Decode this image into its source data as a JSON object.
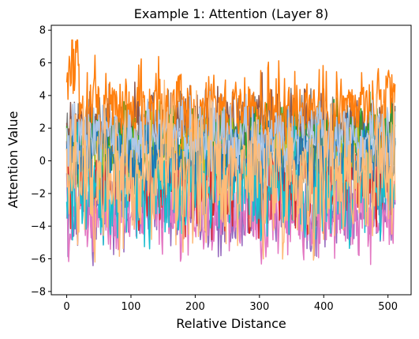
{
  "chart_data": {
    "type": "line",
    "title": "Example 1: Attention (Layer 8)",
    "xlabel": "Relative Distance",
    "ylabel": "Attention Value",
    "xlim": [
      -24,
      536
    ],
    "ylim": [
      -8.2,
      8.3
    ],
    "x_ticks": [
      0,
      100,
      200,
      300,
      400,
      500
    ],
    "y_ticks": [
      8,
      6,
      4,
      2,
      0,
      -2,
      -4,
      -6,
      -8
    ],
    "grid": false,
    "legend": "none",
    "x_range": [
      0,
      511
    ],
    "series": [
      {
        "color": "#9467bd",
        "mean": -2.6,
        "amp": 1.3,
        "seed": 11
      },
      {
        "color": "#e377c2",
        "mean": -3.1,
        "amp": 1.2,
        "seed": 12
      },
      {
        "color": "#d62728",
        "mean": -1.2,
        "amp": 1.3,
        "seed": 13
      },
      {
        "color": "#7f7f7f",
        "mean": 1.9,
        "amp": 1.0,
        "seed": 14
      },
      {
        "color": "#8c564b",
        "mean": 2.0,
        "amp": 1.1,
        "seed": 15
      },
      {
        "color": "#2ca02c",
        "mean": 1.4,
        "amp": 1.0,
        "seed": 16
      },
      {
        "color": "#bcbd22",
        "mean": 0.4,
        "amp": 1.0,
        "seed": 17
      },
      {
        "color": "#17becf",
        "mean": -1.6,
        "amp": 1.5,
        "seed": 18
      },
      {
        "color": "#1f77b4",
        "mean": 0.6,
        "amp": 1.1,
        "seed": 19
      },
      {
        "color": "#ff7f0e",
        "mean": 3.2,
        "amp": 1.2,
        "seed": 20
      },
      {
        "color": "#aec7e8",
        "mean": 1.5,
        "amp": 1.0,
        "seed": 21
      },
      {
        "color": "#ffbb78",
        "mean": -0.7,
        "amp": 2.0,
        "seed": 22
      }
    ]
  }
}
